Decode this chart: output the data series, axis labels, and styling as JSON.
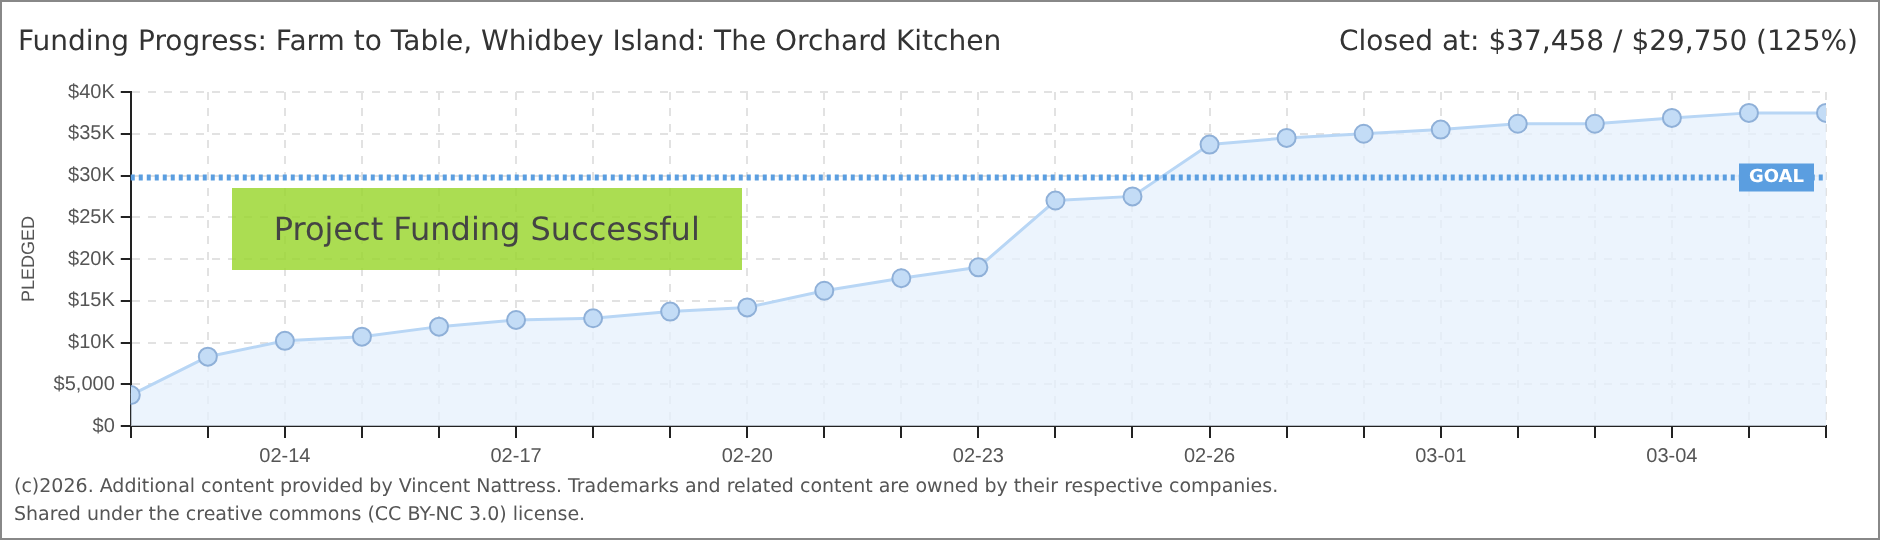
{
  "chart_data": {
    "type": "area",
    "title": "Funding Progress: Farm to Table, Whidbey Island: The Orchard Kitchen",
    "subtitle": "Closed at:  $37,458 / $29,750 (125%)",
    "ylabel": "PLEDGED",
    "x": [
      "--02-12",
      "--02-13",
      "--02-14",
      "--02-15",
      "--02-16",
      "--02-17",
      "--02-18",
      "--02-19",
      "--02-20",
      "--02-21",
      "--02-22",
      "--02-23",
      "--02-24",
      "--02-25",
      "--02-26",
      "--02-27",
      "--02-28",
      "--03-01",
      "--03-02",
      "--03-03",
      "--03-04",
      "--03-05",
      "--03-06"
    ],
    "series": [
      {
        "color": "#b8d6f5",
        "values": [
          3700,
          8300,
          10200,
          10700,
          11900,
          12700,
          12900,
          13700,
          14200,
          16200,
          17700,
          19000,
          27000,
          27500,
          33700,
          34500,
          35000,
          35500,
          36200,
          36200,
          36900,
          37500,
          37500
        ]
      }
    ],
    "xlim": [
      "--02-12",
      "--03-06"
    ],
    "xticks": [
      {
        "value": "--02-12",
        "label": null
      },
      {
        "value": "--02-13",
        "label": null
      },
      {
        "value": "--02-14",
        "label": "02-14"
      },
      {
        "value": "--02-15",
        "label": null
      },
      {
        "value": "--02-16",
        "label": null
      },
      {
        "value": "--02-17",
        "label": "02-17"
      },
      {
        "value": "--02-18",
        "label": null
      },
      {
        "value": "--02-19",
        "label": null
      },
      {
        "value": "--02-20",
        "label": "02-20"
      },
      {
        "value": "--02-21",
        "label": null
      },
      {
        "value": "--02-22",
        "label": null
      },
      {
        "value": "--02-23",
        "label": "02-23"
      },
      {
        "value": "--02-24",
        "label": null
      },
      {
        "value": "--02-25",
        "label": null
      },
      {
        "value": "--02-26",
        "label": "02-26"
      },
      {
        "value": "--02-27",
        "label": null
      },
      {
        "value": "--02-28",
        "label": null
      },
      {
        "value": "--03-01",
        "label": "03-01"
      },
      {
        "value": "--03-02",
        "label": null
      },
      {
        "value": "--03-03",
        "label": null
      },
      {
        "value": "--03-04",
        "label": "03-04"
      },
      {
        "value": "--03-05",
        "label": null
      },
      {
        "value": "--03-06",
        "label": null
      }
    ],
    "ylim": [
      0,
      40000
    ],
    "yticks": [
      {
        "value": 0,
        "label": "$0"
      },
      {
        "value": 5000,
        "label": "$5,000"
      },
      {
        "value": 10000,
        "label": "$10K"
      },
      {
        "value": 15000,
        "label": "$15K"
      },
      {
        "value": 20000,
        "label": "$20K"
      },
      {
        "value": 25000,
        "label": "$25K"
      },
      {
        "value": 30000,
        "label": "$30K"
      },
      {
        "value": 35000,
        "label": "$35K"
      },
      {
        "value": 40000,
        "label": "$40K"
      }
    ],
    "ref_lines": [
      {
        "axis": "y",
        "value": 29750,
        "label": "GOAL",
        "color": "#5b9ee0",
        "line_style": "dotted"
      }
    ],
    "annotations": [
      "Project Funding Successful",
      "(c)2026. Additional content provided by Vincent Nattress. Trademarks and related content are owned by their respective companies.",
      "Shared under the creative commons (CC BY-NC 3.0) license."
    ],
    "grid": true,
    "legend": false,
    "marker": "circle",
    "line_style": "solid"
  }
}
